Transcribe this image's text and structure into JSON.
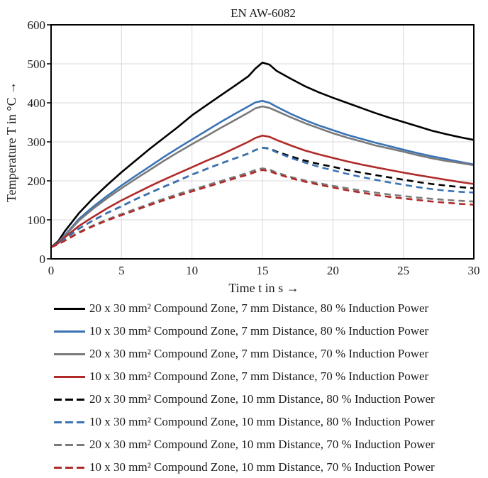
{
  "chart_data": {
    "type": "line",
    "title": "EN AW-6082",
    "xlabel": "Time t in s →",
    "ylabel": "Temperature T in °C →",
    "xlim": [
      0,
      30
    ],
    "ylim": [
      0,
      600
    ],
    "xticks": [
      0,
      5,
      10,
      15,
      20,
      25,
      30
    ],
    "yticks": [
      0,
      100,
      200,
      300,
      400,
      500,
      600
    ],
    "grid": true,
    "legend_position": "bottom",
    "x": [
      0,
      0.5,
      1,
      2,
      3,
      4,
      5,
      6,
      7,
      8,
      9,
      10,
      11,
      12,
      13,
      14,
      14.5,
      15,
      15.5,
      16,
      17,
      18,
      19,
      20,
      21,
      22,
      23,
      24,
      25,
      26,
      27,
      28,
      29,
      30
    ],
    "series": [
      {
        "name": "20 x 30 mm² Compound Zone,  7 mm Distance, 80 % Induction Power",
        "color": "#000000",
        "dash": false,
        "values": [
          30,
          45,
          72,
          118,
          156,
          190,
          222,
          252,
          282,
          310,
          338,
          368,
          393,
          418,
          443,
          468,
          488,
          503,
          498,
          482,
          462,
          443,
          427,
          413,
          400,
          387,
          374,
          362,
          351,
          340,
          329,
          320,
          312,
          305
        ]
      },
      {
        "name": "10 x 30 mm² Compound Zone,  7 mm Distance, 80 % Induction Power",
        "color": "#3a73b5",
        "dash": false,
        "values": [
          30,
          42,
          62,
          103,
          134,
          162,
          188,
          213,
          237,
          261,
          284,
          306,
          328,
          350,
          371,
          391,
          401,
          405,
          400,
          390,
          372,
          356,
          342,
          330,
          318,
          308,
          298,
          289,
          280,
          271,
          263,
          256,
          249,
          242
        ]
      },
      {
        "name": "20 x 30 mm² Compound Zone,  7 mm Distance, 70 % Induction Power",
        "color": "#7a7a7a",
        "dash": false,
        "values": [
          30,
          42,
          60,
          99,
          129,
          156,
          181,
          205,
          228,
          251,
          273,
          294,
          314,
          335,
          355,
          375,
          386,
          391,
          387,
          379,
          363,
          348,
          335,
          322,
          311,
          301,
          291,
          283,
          275,
          266,
          258,
          251,
          246,
          240
        ]
      },
      {
        "name": "10 x 30 mm² Compound Zone,  7 mm Distance, 70 % Induction Power",
        "color": "#b02a2a",
        "dash": false,
        "values": [
          30,
          40,
          56,
          85,
          108,
          130,
          150,
          168,
          186,
          203,
          219,
          235,
          251,
          266,
          283,
          300,
          310,
          316,
          313,
          305,
          291,
          278,
          268,
          259,
          250,
          242,
          235,
          228,
          221,
          215,
          209,
          203,
          197,
          192
        ]
      },
      {
        "name": "20 x 30 mm² Compound Zone, 10 mm Distance, 80 % Induction Power",
        "color": "#000000",
        "dash": true,
        "values": [
          30,
          38,
          52,
          78,
          99,
          118,
          135,
          153,
          169,
          185,
          200,
          216,
          230,
          244,
          257,
          270,
          279,
          285,
          283,
          275,
          263,
          252,
          243,
          236,
          228,
          221,
          215,
          209,
          203,
          197,
          192,
          188,
          184,
          181
        ]
      },
      {
        "name": "10 x 30 mm² Compound Zone, 10 mm Distance, 80 % Induction Power",
        "color": "#3a73b5",
        "dash": true,
        "values": [
          30,
          38,
          52,
          78,
          99,
          118,
          135,
          153,
          169,
          185,
          200,
          216,
          230,
          244,
          257,
          270,
          279,
          285,
          282,
          273,
          259,
          247,
          236,
          227,
          218,
          210,
          203,
          196,
          190,
          184,
          179,
          175,
          172,
          170
        ]
      },
      {
        "name": "20 x 30 mm² Compound Zone, 10 mm Distance, 70 % Induction Power",
        "color": "#7a7a7a",
        "dash": true,
        "values": [
          30,
          37,
          48,
          69,
          86,
          101,
          115,
          128,
          141,
          154,
          166,
          177,
          188,
          199,
          210,
          221,
          228,
          232,
          229,
          221,
          210,
          201,
          194,
          187,
          181,
          175,
          170,
          165,
          161,
          157,
          154,
          151,
          149,
          147
        ]
      },
      {
        "name": "10 x 30 mm² Compound Zone, 10 mm Distance, 70 % Induction Power",
        "color": "#b02a2a",
        "dash": true,
        "values": [
          30,
          37,
          47,
          67,
          84,
          99,
          112,
          125,
          138,
          150,
          162,
          173,
          184,
          195,
          206,
          216,
          223,
          228,
          225,
          218,
          207,
          198,
          190,
          183,
          176,
          170,
          164,
          159,
          155,
          151,
          147,
          144,
          141,
          139
        ]
      }
    ]
  }
}
